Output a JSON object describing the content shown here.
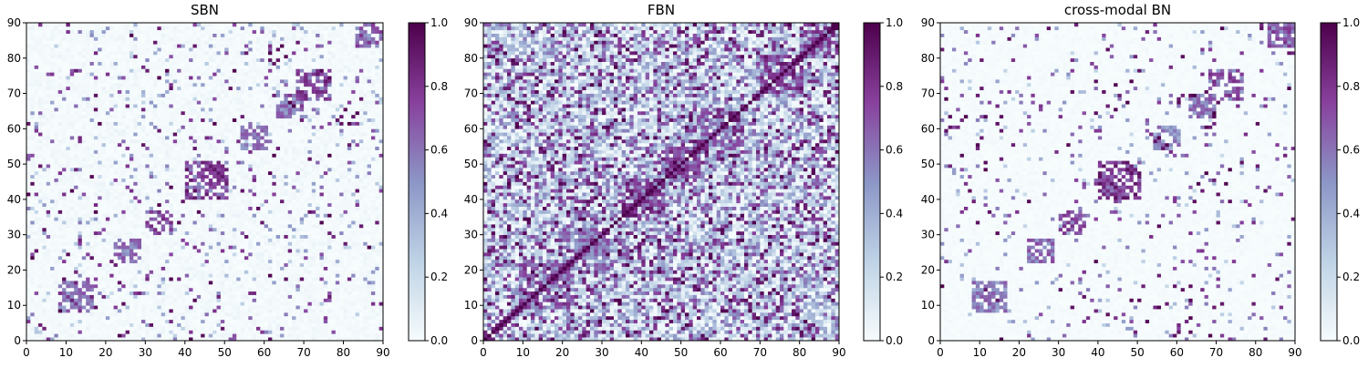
{
  "chart_data": [
    {
      "type": "heatmap",
      "title": "SBN",
      "xlim": [
        0,
        90
      ],
      "ylim": [
        0,
        90
      ],
      "xticks": [
        "0",
        "10",
        "20",
        "30",
        "40",
        "50",
        "60",
        "70",
        "80",
        "90"
      ],
      "yticks": [
        "0",
        "10",
        "20",
        "30",
        "40",
        "50",
        "60",
        "70",
        "80",
        "90"
      ],
      "colorbar": {
        "range": [
          0.0,
          1.0
        ],
        "ticks": [
          "0.0",
          "0.2",
          "0.4",
          "0.6",
          "0.8",
          "1.0"
        ]
      },
      "colormap": [
        "#f7fcfd",
        "#bfd3e6",
        "#8c96c6",
        "#88419d",
        "#4d004b"
      ],
      "pattern": {
        "seed": 11,
        "baseline": 0.03,
        "density": 0.05,
        "blocks": [
          [
            45,
            45,
            5,
            0.95
          ],
          [
            33,
            33,
            3,
            0.85
          ],
          [
            72,
            72,
            4,
            0.85
          ],
          [
            12,
            12,
            4,
            0.7
          ],
          [
            25,
            25,
            3,
            0.75
          ],
          [
            57,
            57,
            3,
            0.7
          ],
          [
            86,
            86,
            3,
            0.8
          ],
          [
            66,
            66,
            3,
            0.7
          ]
        ]
      }
    },
    {
      "type": "heatmap",
      "title": "FBN",
      "xlim": [
        0,
        90
      ],
      "ylim": [
        0,
        90
      ],
      "xticks": [
        "0",
        "10",
        "20",
        "30",
        "40",
        "50",
        "60",
        "70",
        "80",
        "90"
      ],
      "yticks": [
        "0",
        "10",
        "20",
        "30",
        "40",
        "50",
        "60",
        "70",
        "80",
        "90"
      ],
      "colorbar": {
        "range": [
          0.0,
          1.0
        ],
        "ticks": [
          "0.0",
          "0.2",
          "0.4",
          "0.6",
          "0.8",
          "1.0"
        ]
      },
      "colormap": [
        "#f7fcfd",
        "#bfd3e6",
        "#8c96c6",
        "#88419d",
        "#4d004b"
      ],
      "pattern": {
        "seed": 23,
        "baseline": 0.4,
        "density": 0.25,
        "diagonal": 1.0,
        "blocks": [
          [
            40,
            40,
            5,
            0.95
          ],
          [
            50,
            50,
            4,
            0.85
          ],
          [
            75,
            75,
            5,
            0.9
          ],
          [
            15,
            15,
            6,
            0.8
          ],
          [
            25,
            25,
            6,
            0.75
          ],
          [
            60,
            60,
            5,
            0.8
          ],
          [
            85,
            85,
            4,
            0.85
          ]
        ]
      }
    },
    {
      "type": "heatmap",
      "title": "cross-modal BN",
      "xlim": [
        0,
        90
      ],
      "ylim": [
        0,
        90
      ],
      "xticks": [
        "0",
        "10",
        "20",
        "30",
        "40",
        "50",
        "60",
        "70",
        "80",
        "90"
      ],
      "yticks": [
        "0",
        "10",
        "20",
        "30",
        "40",
        "50",
        "60",
        "70",
        "80",
        "90"
      ],
      "colorbar": {
        "range": [
          0.0,
          1.0
        ],
        "ticks": [
          "0.0",
          "0.2",
          "0.4",
          "0.6",
          "0.8",
          "1.0"
        ]
      },
      "colormap": [
        "#f7fcfd",
        "#bfd3e6",
        "#8c96c6",
        "#88419d",
        "#4d004b"
      ],
      "pattern": {
        "seed": 37,
        "baseline": 0.015,
        "density": 0.04,
        "blocks": [
          [
            45,
            45,
            5,
            0.95
          ],
          [
            33,
            33,
            3,
            0.85
          ],
          [
            72,
            72,
            4,
            0.85
          ],
          [
            12,
            12,
            4,
            0.7
          ],
          [
            25,
            25,
            3,
            0.75
          ],
          [
            57,
            57,
            3,
            0.7
          ],
          [
            86,
            86,
            3,
            0.8
          ],
          [
            66,
            66,
            3,
            0.7
          ]
        ]
      }
    }
  ]
}
